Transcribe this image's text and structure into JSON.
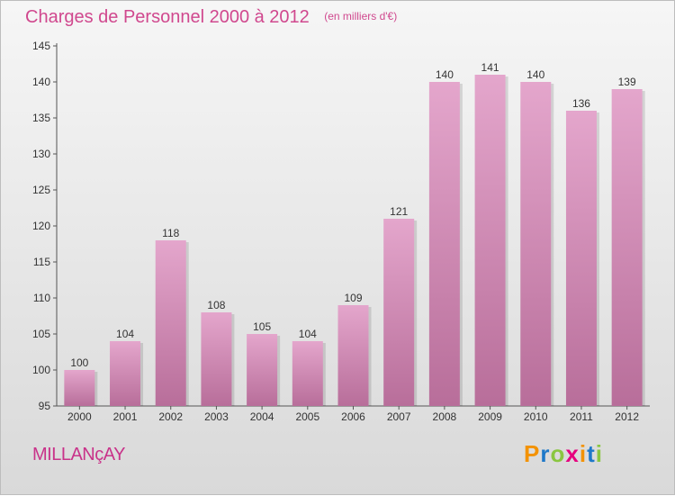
{
  "header": {
    "title": "Charges de Personnel 2000 à 2012",
    "subtitle": "(en milliers d'€)"
  },
  "footer": {
    "commune": "MILLANçAY",
    "logo": "Proxiti",
    "logo_colors": [
      "#f39200",
      "#1e78c8",
      "#8ac640",
      "#e6007e",
      "#f39200",
      "#1e78c8",
      "#8ac640"
    ]
  },
  "chart_data": {
    "type": "bar",
    "title": "Charges de Personnel 2000 à 2012",
    "subtitle": "(en milliers d'€)",
    "xlabel": "",
    "ylabel": "",
    "categories": [
      "2000",
      "2001",
      "2002",
      "2003",
      "2004",
      "2005",
      "2006",
      "2007",
      "2008",
      "2009",
      "2010",
      "2011",
      "2012"
    ],
    "values": [
      100,
      104,
      118,
      108,
      105,
      104,
      109,
      121,
      140,
      141,
      140,
      136,
      139
    ],
    "ylim": [
      95,
      145
    ],
    "yticks": [
      95,
      100,
      105,
      110,
      115,
      120,
      125,
      130,
      135,
      140,
      145
    ],
    "bar_color_top": "#e4a6cc",
    "bar_color_bottom": "#b86e9a",
    "grid": false
  }
}
